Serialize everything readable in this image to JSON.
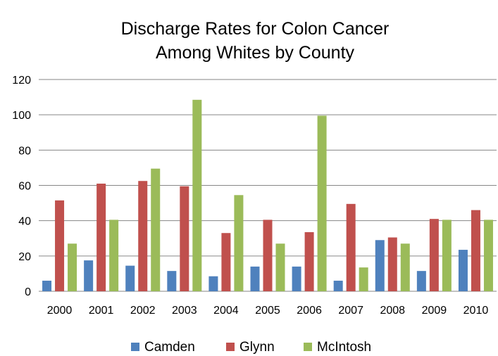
{
  "chart_data": {
    "type": "bar",
    "title_lines": [
      "Discharge Rates for Colon Cancer",
      "Among Whites by County"
    ],
    "categories": [
      "2000",
      "2001",
      "2002",
      "2003",
      "2004",
      "2005",
      "2006",
      "2007",
      "2008",
      "2009",
      "2010"
    ],
    "series": [
      {
        "name": "Camden",
        "color": "#4F81BD",
        "values": [
          6,
          17.5,
          14.5,
          11.5,
          8.5,
          14,
          14,
          6,
          29,
          11.5,
          23.5
        ]
      },
      {
        "name": "Glynn",
        "color": "#C0504D",
        "values": [
          51.5,
          61,
          62.5,
          59.5,
          33,
          40.5,
          33.5,
          49.5,
          30.5,
          41,
          46
        ]
      },
      {
        "name": "McIntosh",
        "color": "#9BBB59",
        "values": [
          27,
          40.5,
          69.5,
          108.5,
          54.5,
          27,
          99.5,
          13.5,
          27,
          40.5,
          40.5
        ]
      }
    ],
    "y_ticks": [
      "0",
      "20",
      "40",
      "60",
      "80",
      "100",
      "120"
    ],
    "ylim": [
      0,
      120
    ],
    "grid": true,
    "legend_position": "bottom"
  }
}
